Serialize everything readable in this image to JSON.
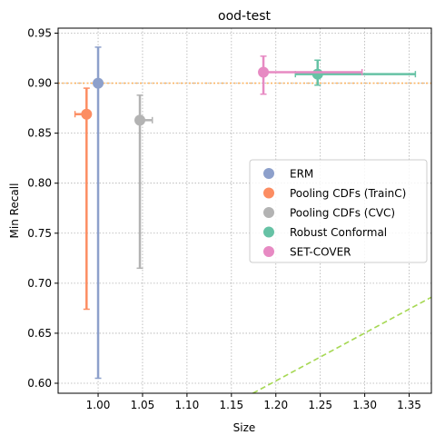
{
  "chart_data": {
    "type": "scatter",
    "title": "ood-test",
    "xlabel": "Size",
    "ylabel": "Min Recall",
    "xlim": [
      0.955,
      1.375
    ],
    "ylim": [
      0.59,
      0.955
    ],
    "xticks": [
      1.0,
      1.05,
      1.1,
      1.15,
      1.2,
      1.25,
      1.3,
      1.35
    ],
    "xtick_labels": [
      "1.00",
      "1.05",
      "1.10",
      "1.15",
      "1.20",
      "1.25",
      "1.30",
      "1.35"
    ],
    "yticks": [
      0.6,
      0.65,
      0.7,
      0.75,
      0.8,
      0.85,
      0.9,
      0.95
    ],
    "ytick_labels": [
      "0.60",
      "0.65",
      "0.70",
      "0.75",
      "0.80",
      "0.85",
      "0.90",
      "0.95"
    ],
    "grid": true,
    "legend_position": "center-right",
    "series": [
      {
        "name": "ERM",
        "color": "#8da0cb",
        "x": 1.0,
        "y": 0.9,
        "xerr": [
          0.0,
          0.0
        ],
        "yerr": [
          0.605,
          0.936
        ]
      },
      {
        "name": "Pooling CDFs (TrainC)",
        "color": "#fc8d62",
        "x": 0.987,
        "y": 0.869,
        "xerr": [
          0.974,
          0.99
        ],
        "yerr": [
          0.674,
          0.895
        ]
      },
      {
        "name": "Pooling CDFs (CVC)",
        "color": "#b3b3b3",
        "x": 1.047,
        "y": 0.863,
        "xerr": [
          1.047,
          1.061
        ],
        "yerr": [
          0.715,
          0.888
        ]
      },
      {
        "name": "Robust Conformal",
        "color": "#66c2a5",
        "x": 1.247,
        "y": 0.909,
        "xerr": [
          1.222,
          1.357
        ],
        "yerr": [
          0.898,
          0.923
        ]
      },
      {
        "name": "SET-COVER",
        "color": "#e78ac3",
        "x": 1.186,
        "y": 0.911,
        "xerr": [
          1.186,
          1.297
        ],
        "yerr": [
          0.889,
          0.927
        ]
      }
    ],
    "reference_lines": [
      {
        "kind": "horizontal",
        "y": 0.9,
        "color": "#fdb462",
        "style": "dotted"
      },
      {
        "kind": "line",
        "x": [
          1.17,
          1.375
        ],
        "y": [
          0.588,
          0.686
        ],
        "color": "#a6d854",
        "style": "dashed"
      }
    ]
  }
}
